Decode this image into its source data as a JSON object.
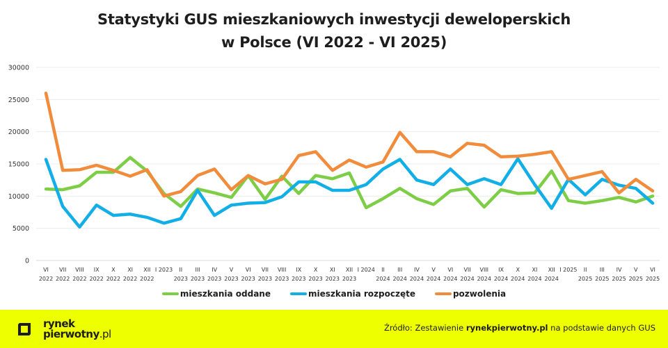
{
  "title_line1": "Statystyki GUS mieszkaniowych inwestycji deweloperskich",
  "title_line2": "w Polsce (VI 2022 - VI 2025)",
  "chart_data": {
    "type": "line",
    "title": "Statystyki GUS mieszkaniowych inwestycji deweloperskich w Polsce (VI 2022 - VI 2025)",
    "xlabel": "",
    "ylabel": "",
    "ylim": [
      0,
      30000
    ],
    "yticks": [
      0,
      5000,
      10000,
      15000,
      20000,
      25000,
      30000
    ],
    "grid": true,
    "legend_position": "bottom",
    "categories": [
      [
        "VI",
        "2022"
      ],
      [
        "VII",
        "2022"
      ],
      [
        "VIII",
        "2022"
      ],
      [
        "IX",
        "2022"
      ],
      [
        "X",
        "2022"
      ],
      [
        "XI",
        "2022"
      ],
      [
        "XII",
        "2022"
      ],
      [
        "I 2023",
        ""
      ],
      [
        "II",
        "2023"
      ],
      [
        "III",
        "2023"
      ],
      [
        "IV",
        "2023"
      ],
      [
        "V",
        "2023"
      ],
      [
        "VI",
        "2023"
      ],
      [
        "VII",
        "2023"
      ],
      [
        "VIII",
        "2023"
      ],
      [
        "IX",
        "2023"
      ],
      [
        "X",
        "2023"
      ],
      [
        "XI",
        "2023"
      ],
      [
        "XII",
        "2023"
      ],
      [
        "I 2024",
        ""
      ],
      [
        "II",
        "2024"
      ],
      [
        "III",
        "2024"
      ],
      [
        "IV",
        "2024"
      ],
      [
        "V",
        "2024"
      ],
      [
        "VI",
        "2024"
      ],
      [
        "VII",
        "2024"
      ],
      [
        "VIII",
        "2024"
      ],
      [
        "IX",
        "2024"
      ],
      [
        "X",
        "2024"
      ],
      [
        "XI",
        "2024"
      ],
      [
        "XII",
        "2024"
      ],
      [
        "I 2025",
        ""
      ],
      [
        "II",
        "2025"
      ],
      [
        "III",
        "2025"
      ],
      [
        "IV",
        "2025"
      ],
      [
        "V",
        "2025"
      ],
      [
        "VI",
        "2025"
      ]
    ],
    "series": [
      {
        "name": "mieszkania oddane",
        "color": "#7dce46",
        "values": [
          11100,
          11000,
          11600,
          13700,
          13700,
          16000,
          13900,
          10400,
          8400,
          11100,
          10500,
          9800,
          13200,
          9500,
          13100,
          10400,
          13200,
          12700,
          13600,
          8200,
          9600,
          11200,
          9600,
          8700,
          10800,
          11200,
          8300,
          11000,
          10400,
          10500,
          13900,
          9300,
          8900,
          9300,
          9800,
          9100,
          10000
        ]
      },
      {
        "name": "mieszkania rozpoczęte",
        "color": "#12aee6",
        "values": [
          15700,
          8400,
          5200,
          8600,
          7000,
          7200,
          6700,
          5800,
          6500,
          10900,
          7000,
          8600,
          8900,
          9000,
          9900,
          12200,
          12200,
          10900,
          10900,
          11800,
          14200,
          15700,
          12500,
          11800,
          14200,
          11800,
          12700,
          11800,
          15800,
          11800,
          8100,
          12600,
          10200,
          12600,
          11700,
          11200,
          8900
        ]
      },
      {
        "name": "pozwolenia",
        "color": "#f08c3c",
        "values": [
          26000,
          14000,
          14100,
          14800,
          14000,
          13100,
          14100,
          10000,
          10700,
          13200,
          14200,
          11000,
          13200,
          11900,
          12600,
          16300,
          16900,
          14000,
          15600,
          14500,
          15300,
          19900,
          16900,
          16900,
          16100,
          18200,
          17900,
          16100,
          16200,
          16500,
          16900,
          12600,
          13200,
          13800,
          10500,
          12600,
          10800
        ]
      }
    ]
  },
  "legend": [
    {
      "label": "mieszkania oddane",
      "color": "#7dce46"
    },
    {
      "label": "mieszkania rozpoczęte",
      "color": "#12aee6"
    },
    {
      "label": "pozwolenia",
      "color": "#f08c3c"
    }
  ],
  "footer": {
    "logo_line1": "rynek",
    "logo_line2": "pierwotny",
    "logo_suffix": ".pl",
    "source_prefix": "Źródło: Zestawienie ",
    "source_brand": "rynekpierwotny.pl",
    "source_suffix": " na podstawie danych GUS",
    "background": "#eeff00"
  }
}
